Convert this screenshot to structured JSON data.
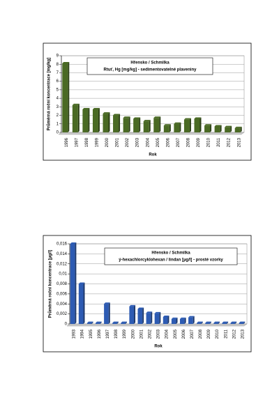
{
  "chart_data": [
    {
      "type": "bar",
      "title": "Hřensko / Schmilka",
      "subtitle": "Rtuť, Hg [mg/kg] - sedimentovatelné plaveniny",
      "x_label": "Rok",
      "y_label": "Průměrná roční koncentrace [mg/kg]",
      "categories": [
        "1996",
        "1997",
        "1998",
        "1999",
        "2000",
        "2001",
        "2002",
        "2003",
        "2004",
        "2005",
        "2006",
        "2007",
        "2008",
        "2009",
        "2010",
        "2011",
        "2012",
        "2013"
      ],
      "values": [
        8.1,
        3.2,
        2.7,
        2.7,
        2.2,
        2.0,
        1.7,
        1.6,
        1.3,
        1.7,
        0.8,
        1.0,
        1.5,
        1.6,
        0.8,
        0.7,
        0.6,
        0.5
      ],
      "color": "#4a6a24",
      "ylim": [
        0,
        9
      ],
      "yticks": [
        0,
        1,
        2,
        3,
        4,
        5,
        6,
        7,
        8,
        9
      ],
      "grid": true
    },
    {
      "type": "bar",
      "title": "Hřensko / Schmilka",
      "subtitle": "ý-hexachlorcyklohexan / lindan [µg/l] - prosté vzorky",
      "x_label": "Rok",
      "y_label": "Průměrná roční koncentrace [µg/l]",
      "categories": [
        "1993",
        "1994",
        "1995",
        "1996",
        "1997",
        "1998",
        "1999",
        "2000",
        "2001",
        "2002",
        "2003",
        "2004",
        "2005",
        "2006",
        "2007",
        "2008",
        "2009",
        "2010",
        "2011",
        "2012",
        "2013"
      ],
      "values": [
        0.016,
        0.008,
        0.0002,
        0.0002,
        0.004,
        0.0002,
        0.0002,
        0.0035,
        0.003,
        0.0022,
        0.0021,
        0.0014,
        0.001,
        0.001,
        0.0013,
        0.0002,
        0.0002,
        0.0002,
        0.0002,
        0.0002,
        0.0002
      ],
      "color": "#2d5bb3",
      "ylim": [
        0,
        0.016
      ],
      "yticks": [
        0,
        {
          "value": 0.002,
          "label": "0,002"
        },
        {
          "value": 0.004,
          "label": "0,004"
        },
        {
          "value": 0.006,
          "label": "0,006"
        },
        {
          "value": 0.008,
          "label": "0,008"
        },
        {
          "value": 0.01,
          "label": "0,01"
        },
        {
          "value": 0.012,
          "label": "0,012"
        },
        {
          "value": 0.014,
          "label": "0,014"
        },
        {
          "value": 0.016,
          "label": "0,016"
        }
      ],
      "grid": true
    }
  ]
}
